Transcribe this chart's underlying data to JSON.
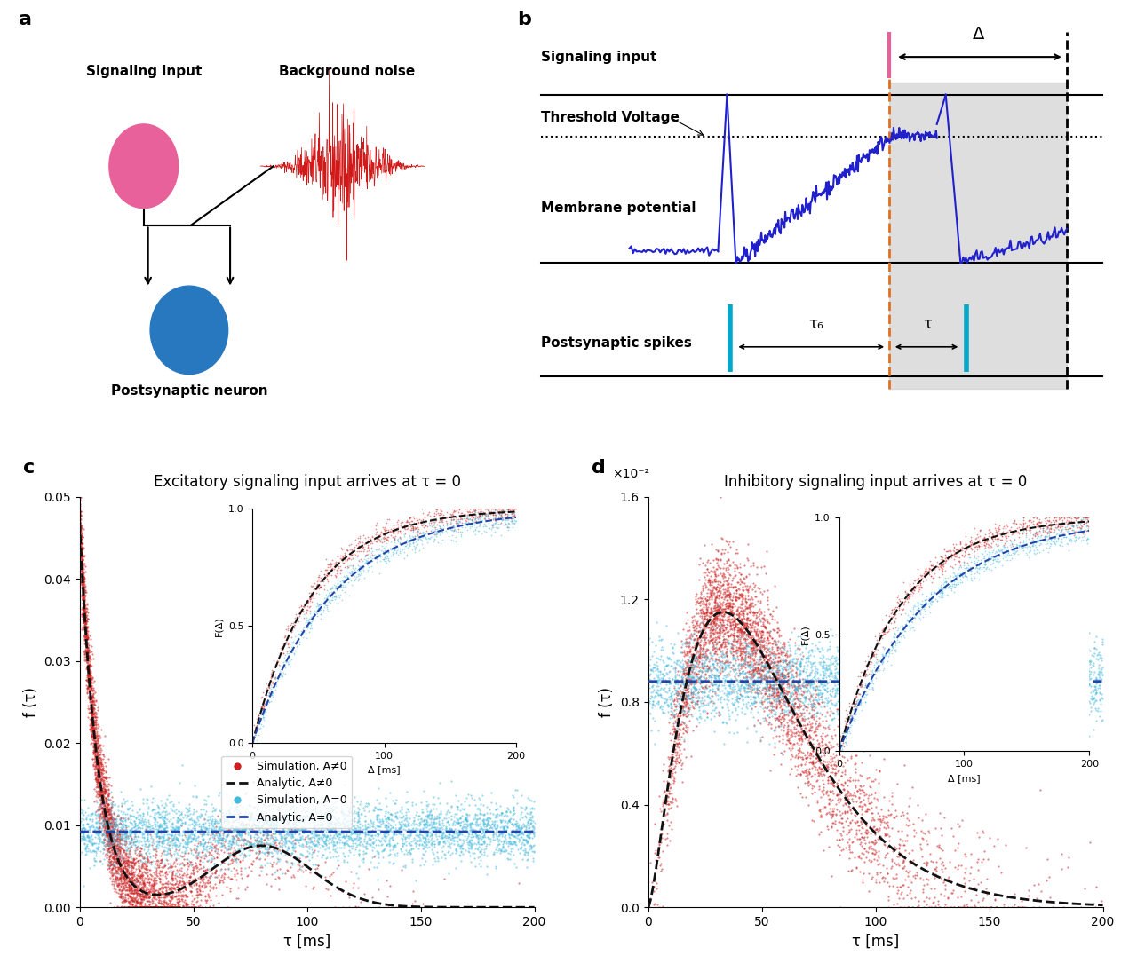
{
  "panel_a": {
    "signaling_label": "Signaling input",
    "noise_label": "Background noise",
    "postsynaptic_label": "Postsynaptic neuron",
    "pink_color": "#E8619A",
    "blue_color": "#2878C0"
  },
  "panel_b": {
    "signaling_label": "Signaling input",
    "threshold_label": "Threshold Voltage",
    "membrane_label": "Membrane potential",
    "postsynaptic_label": "Postsynaptic spikes",
    "delta_label": "Δ",
    "tau_b_label": "τ₆",
    "tau_label": "τ",
    "gray_fill": "#d0d0d0",
    "blue_trace": "#2020CC",
    "orange_dashed": "#E07020",
    "pink_line": "#E8619A",
    "cyan_spikes": "#00A8CC"
  },
  "panel_c": {
    "title": "Excitatory signaling input arrives at τ = 0",
    "xlabel": "τ [ms]",
    "ylabel": "f (τ)",
    "xlim": [
      0,
      200
    ],
    "ylim": [
      0,
      0.05
    ],
    "yticks": [
      0,
      0.01,
      0.02,
      0.03,
      0.04,
      0.05
    ],
    "xticks": [
      0,
      50,
      100,
      150,
      200
    ],
    "inset_xlabel": "Δ [ms]",
    "inset_ylabel": "F(Δ)",
    "sim_Aneq0_color": "#CC2020",
    "sim_A0_color": "#44BBDD",
    "analytic_Aneq0_color": "#111111",
    "analytic_A0_color": "#2244AA"
  },
  "panel_d": {
    "title": "Inhibitory signaling input arrives at τ = 0",
    "xlabel": "τ [ms]",
    "ylabel": "f (τ)",
    "scale_label": "×10⁻²",
    "xlim": [
      0,
      200
    ],
    "ylim": [
      0,
      1.6
    ],
    "yticks": [
      0,
      0.4,
      0.8,
      1.2,
      1.6
    ],
    "xticks": [
      0,
      50,
      100,
      150,
      200
    ],
    "inset_xlabel": "Δ [ms]",
    "inset_ylabel": "F(Δ)",
    "sim_Aneq0_color": "#CC2020",
    "sim_A0_color": "#44BBDD",
    "analytic_Aneq0_color": "#111111",
    "analytic_A0_color": "#2244AA"
  }
}
